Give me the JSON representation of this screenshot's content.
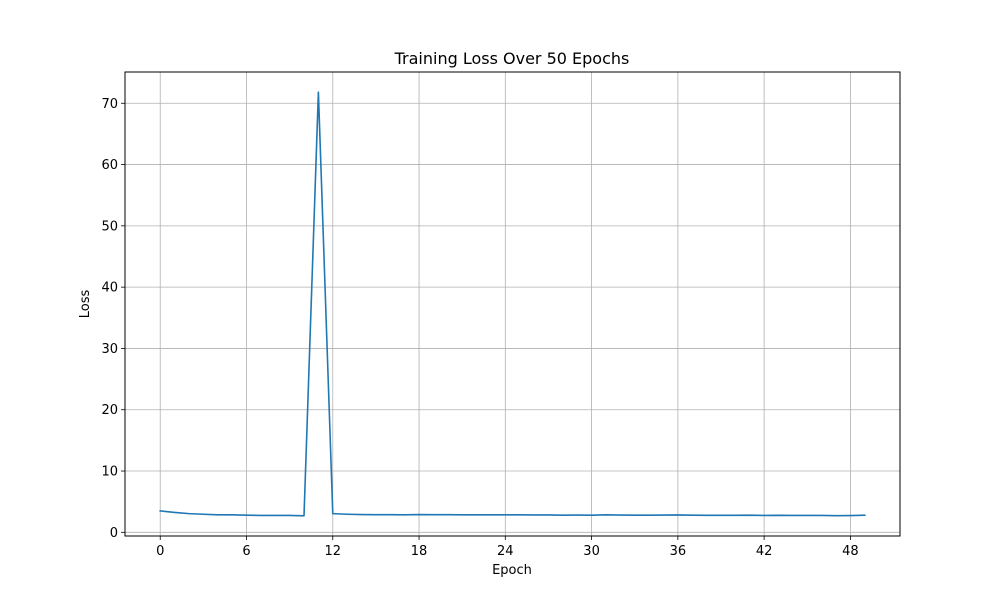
{
  "chart_data": {
    "type": "line",
    "title": "Training Loss Over 50 Epochs",
    "xlabel": "Epoch",
    "ylabel": "Loss",
    "xlim": [
      -2.45,
      51.45
    ],
    "ylim": [
      -0.6,
      75.1
    ],
    "xticks": [
      0,
      6,
      12,
      18,
      24,
      30,
      36,
      42,
      48
    ],
    "yticks": [
      0,
      10,
      20,
      30,
      40,
      50,
      60,
      70
    ],
    "grid": true,
    "series": [
      {
        "color": "#1f77b4",
        "x": [
          0,
          1,
          2,
          3,
          4,
          5,
          6,
          7,
          8,
          9,
          10,
          11,
          12,
          13,
          14,
          15,
          16,
          17,
          18,
          19,
          20,
          21,
          22,
          23,
          24,
          25,
          26,
          27,
          28,
          29,
          30,
          31,
          32,
          33,
          34,
          35,
          36,
          37,
          38,
          39,
          40,
          41,
          42,
          43,
          44,
          45,
          46,
          47,
          48,
          49
        ],
        "y": [
          3.5,
          3.25,
          3.05,
          2.95,
          2.85,
          2.85,
          2.8,
          2.75,
          2.75,
          2.75,
          2.7,
          71.8,
          3.05,
          2.95,
          2.9,
          2.88,
          2.87,
          2.86,
          2.9,
          2.88,
          2.87,
          2.86,
          2.86,
          2.85,
          2.85,
          2.85,
          2.84,
          2.84,
          2.8,
          2.82,
          2.8,
          2.85,
          2.82,
          2.8,
          2.8,
          2.82,
          2.84,
          2.8,
          2.78,
          2.78,
          2.78,
          2.8,
          2.76,
          2.78,
          2.75,
          2.76,
          2.76,
          2.72,
          2.74,
          2.8
        ]
      }
    ]
  }
}
